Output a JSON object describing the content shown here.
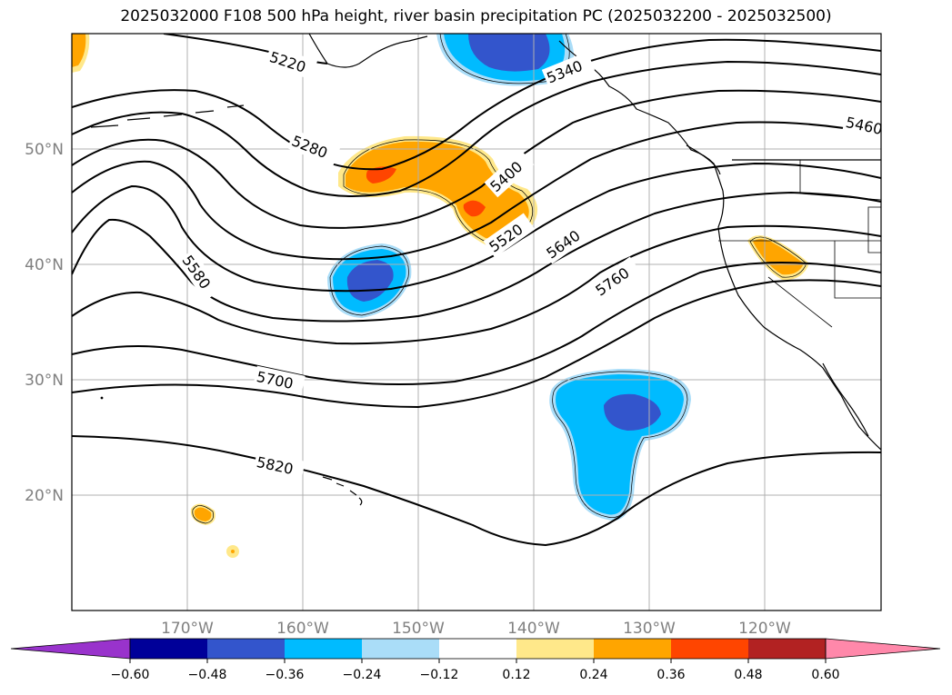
{
  "title": "2025032000 F108 500 hPa height, river basin precipitation PC (2025032200 - 2025032500)",
  "lat_labels": [
    "50°N",
    "40°N",
    "30°N",
    "20°N"
  ],
  "lon_labels": [
    "170°W",
    "160°W",
    "150°W",
    "140°W",
    "130°W",
    "120°W"
  ],
  "contour_labels": [
    "5220",
    "5280",
    "5340",
    "5400",
    "5460",
    "5520",
    "5580",
    "5640",
    "5700",
    "5760",
    "5820"
  ],
  "colorbar": {
    "colors": [
      "#9933cc",
      "#000099",
      "#3355cc",
      "#00bbff",
      "#aaddf8",
      "#ffffff",
      "#ffe88a",
      "#ffa500",
      "#ff4500",
      "#b22222",
      "#ff88aa"
    ],
    "tick_labels": [
      "−0.60",
      "−0.48",
      "−0.36",
      "−0.24",
      "−0.12",
      "0.12",
      "0.24",
      "0.36",
      "0.48",
      "0.60"
    ]
  }
}
